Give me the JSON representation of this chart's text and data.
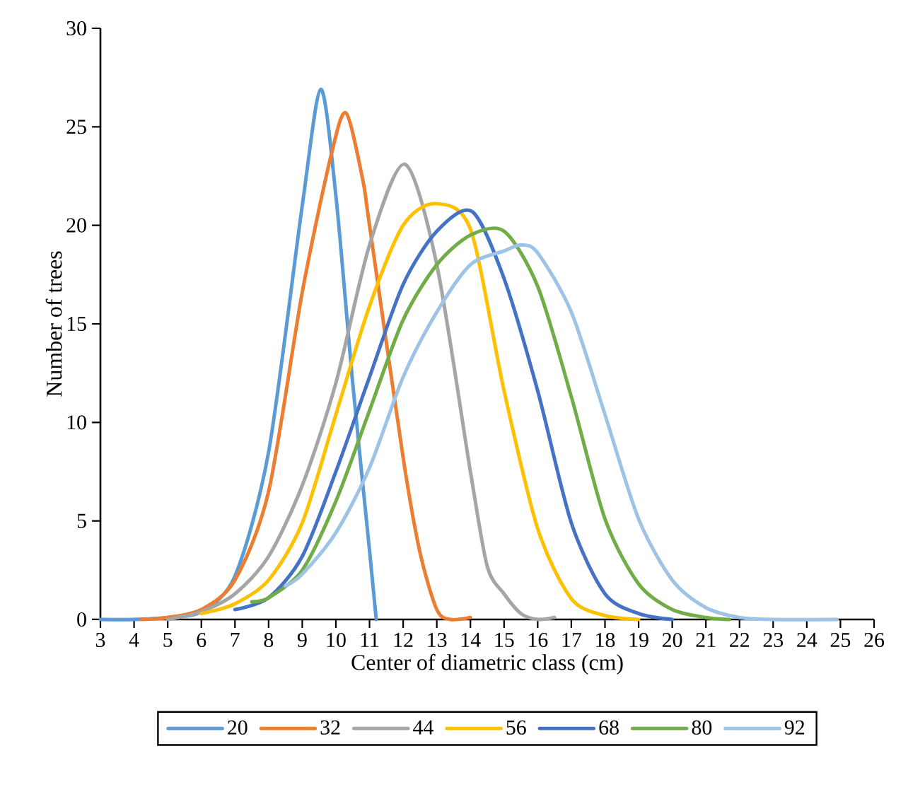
{
  "chart_data": {
    "type": "line",
    "xlabel": "Center of diametric class (cm)",
    "ylabel": "Number of trees",
    "xlim": [
      3,
      26
    ],
    "xticks": [
      3,
      4,
      5,
      6,
      7,
      8,
      9,
      10,
      11,
      12,
      13,
      14,
      15,
      16,
      17,
      18,
      19,
      20,
      21,
      22,
      23,
      24,
      25,
      26
    ],
    "ylim": [
      0,
      30
    ],
    "yticks": [
      0,
      5,
      10,
      15,
      20,
      25,
      30
    ],
    "grid": false,
    "legend": "bottom",
    "marker": "none",
    "line_style": "solid",
    "series": [
      {
        "name": "20",
        "color": "#5b9bd5",
        "x": [
          3,
          4,
          5,
          6,
          7,
          8,
          9,
          9.55,
          10,
          10.5,
          11,
          11.2
        ],
        "values": [
          0,
          0,
          0.1,
          0.4,
          2.2,
          8.5,
          21,
          26.9,
          21.5,
          12,
          3.5,
          0
        ]
      },
      {
        "name": "32",
        "color": "#ed7d31",
        "x": [
          4.2,
          5,
          6,
          7,
          8,
          9,
          9.85,
          10.3,
          10.8,
          11,
          12,
          12.5,
          13,
          13.4,
          14
        ],
        "values": [
          0,
          0.1,
          0.5,
          2,
          6.5,
          16.6,
          23.5,
          25.7,
          22.3,
          20,
          8.2,
          3.4,
          0.5,
          0,
          0.1
        ]
      },
      {
        "name": "44",
        "color": "#a5a5a5",
        "x": [
          5,
          6,
          7,
          8,
          9,
          10,
          11,
          12.05,
          13,
          14,
          14.5,
          15,
          15.5,
          16,
          16.5
        ],
        "values": [
          0,
          0.4,
          1.3,
          3.2,
          6.8,
          12,
          19,
          23.1,
          18,
          7.5,
          2.7,
          1.3,
          0.3,
          0,
          0.1
        ]
      },
      {
        "name": "56",
        "color": "#ffc000",
        "x": [
          6,
          7,
          8,
          9,
          10,
          11,
          12,
          12.95,
          14,
          15,
          16,
          17,
          18,
          19
        ],
        "values": [
          0.3,
          0.8,
          2,
          4.9,
          10.4,
          15.9,
          20,
          21.1,
          19.8,
          11.6,
          4.6,
          1.05,
          0.2,
          0
        ]
      },
      {
        "name": "68",
        "color": "#4472c4",
        "x": [
          7,
          8,
          9,
          10,
          11,
          12,
          13,
          14.05,
          15,
          16,
          17,
          18,
          19,
          20
        ],
        "values": [
          0.5,
          1.1,
          3.2,
          7.5,
          12.3,
          17,
          19.7,
          20.7,
          17.3,
          11.6,
          4.9,
          1.3,
          0.3,
          0
        ]
      },
      {
        "name": "80",
        "color": "#70ad47",
        "x": [
          7.5,
          8,
          9,
          10,
          11,
          12,
          13,
          14,
          15,
          16,
          17,
          18,
          19,
          20,
          21,
          21.7
        ],
        "values": [
          0.9,
          1.1,
          2.5,
          6,
          10.6,
          15.2,
          18,
          19.5,
          19.7,
          16.9,
          11.3,
          5.1,
          1.8,
          0.5,
          0.1,
          0
        ]
      },
      {
        "name": "92",
        "color": "#9dc3e6",
        "x": [
          8.5,
          9,
          10,
          11,
          12,
          13,
          14,
          15,
          15.5,
          16,
          17,
          18,
          19,
          20,
          21,
          22,
          23,
          24.9
        ],
        "values": [
          1.7,
          2.3,
          4.4,
          7.7,
          12.3,
          15.6,
          18,
          18.7,
          19,
          18.6,
          15.6,
          10.4,
          5.1,
          2,
          0.6,
          0.1,
          0,
          0
        ]
      }
    ]
  }
}
